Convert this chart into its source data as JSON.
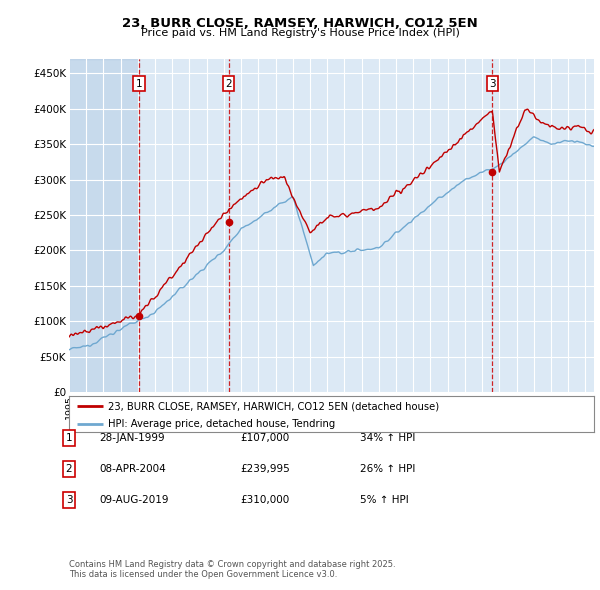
{
  "title": "23, BURR CLOSE, RAMSEY, HARWICH, CO12 5EN",
  "subtitle": "Price paid vs. HM Land Registry's House Price Index (HPI)",
  "ylim": [
    0,
    470000
  ],
  "yticks": [
    0,
    50000,
    100000,
    150000,
    200000,
    250000,
    300000,
    350000,
    400000,
    450000
  ],
  "ytick_labels": [
    "£0",
    "£50K",
    "£100K",
    "£150K",
    "£200K",
    "£250K",
    "£300K",
    "£350K",
    "£400K",
    "£450K"
  ],
  "background_color": "#ffffff",
  "plot_bg_color": "#dce9f5",
  "grid_color": "#ffffff",
  "red_color": "#c00000",
  "blue_color": "#6fa8d0",
  "dashed_color": "#cc0000",
  "sale1_date": 1999.08,
  "sale1_price": 107000,
  "sale2_date": 2004.27,
  "sale2_price": 239995,
  "sale3_date": 2019.6,
  "sale3_price": 310000,
  "legend_line1": "23, BURR CLOSE, RAMSEY, HARWICH, CO12 5EN (detached house)",
  "legend_line2": "HPI: Average price, detached house, Tendring",
  "table_rows": [
    {
      "num": "1",
      "date": "28-JAN-1999",
      "price": "£107,000",
      "pct": "34% ↑ HPI"
    },
    {
      "num": "2",
      "date": "08-APR-2004",
      "price": "£239,995",
      "pct": "26% ↑ HPI"
    },
    {
      "num": "3",
      "date": "09-AUG-2019",
      "price": "£310,000",
      "pct": "5% ↑ HPI"
    }
  ],
  "footnote": "Contains HM Land Registry data © Crown copyright and database right 2025.\nThis data is licensed under the Open Government Licence v3.0.",
  "xstart": 1995,
  "xend": 2025.5
}
